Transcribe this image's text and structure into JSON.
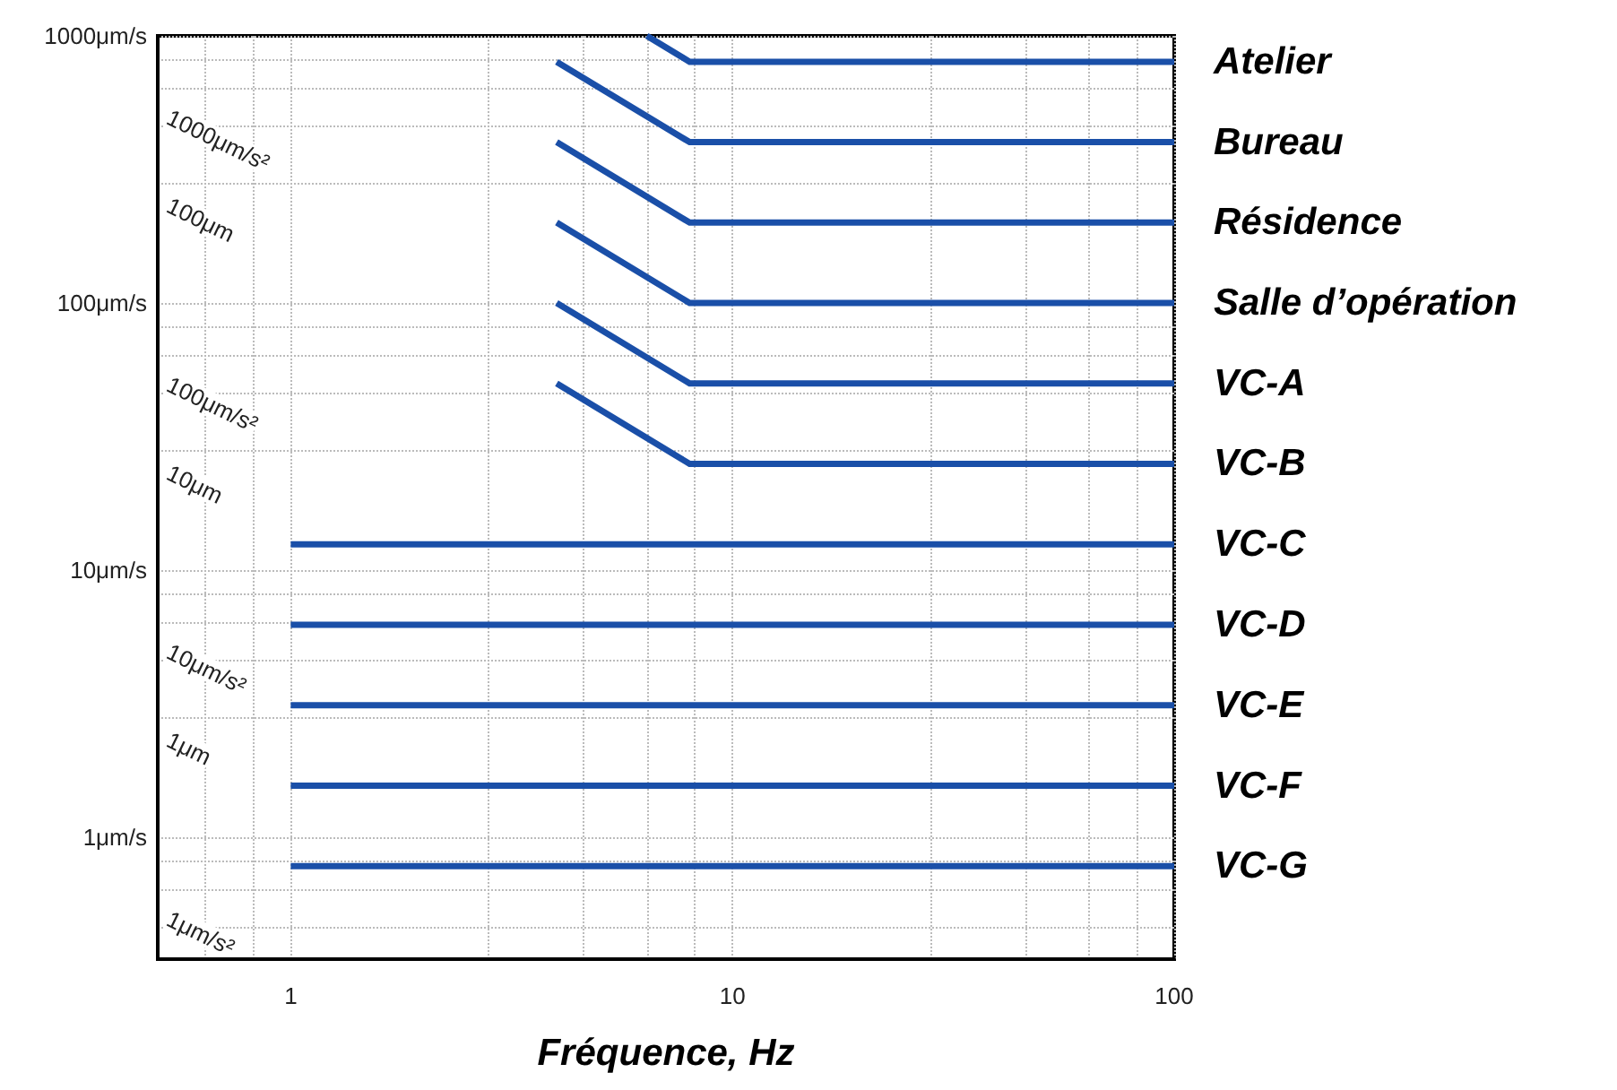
{
  "chart_data": {
    "type": "line",
    "xlabel": "Fréquence, Hz",
    "xlim": [
      0.5,
      100
    ],
    "xticks": [
      1,
      10,
      100
    ],
    "ylim": [
      0.35,
      1000
    ],
    "yticks": [
      {
        "value": 1,
        "label": "1μm/s"
      },
      {
        "value": 10,
        "label": "10μm/s"
      },
      {
        "value": 100,
        "label": "100μm/s"
      },
      {
        "value": 1000,
        "label": "1000μm/s"
      }
    ],
    "annotations": [
      "1000μm/s²",
      "100μm",
      "100μm/s²",
      "10μm",
      "10μm/s²",
      "1μm",
      "1μm/s²"
    ],
    "log": "xy",
    "grid": true,
    "legend": false,
    "marker": "none",
    "line_style": "solid",
    "series": [
      {
        "name": "Atelier",
        "color": "#1a4fa8",
        "x": [
          6.4,
          8,
          100
        ],
        "values": [
          1000,
          800,
          800
        ]
      },
      {
        "name": "Bureau",
        "color": "#1a4fa8",
        "x": [
          4,
          8,
          100
        ],
        "values": [
          800,
          400,
          400
        ]
      },
      {
        "name": "Résidence",
        "color": "#1a4fa8",
        "x": [
          4,
          8,
          100
        ],
        "values": [
          400,
          200,
          200
        ]
      },
      {
        "name": "Salle d’opération",
        "color": "#1a4fa8",
        "x": [
          4,
          8,
          100
        ],
        "values": [
          200,
          100,
          100
        ]
      },
      {
        "name": "VC-A",
        "color": "#1a4fa8",
        "x": [
          4,
          8,
          100
        ],
        "values": [
          100,
          50,
          50
        ]
      },
      {
        "name": "VC-B",
        "color": "#1a4fa8",
        "x": [
          4,
          8,
          100
        ],
        "values": [
          50,
          25,
          25
        ]
      },
      {
        "name": "VC-C",
        "color": "#1a4fa8",
        "x": [
          1,
          100
        ],
        "values": [
          12.5,
          12.5
        ]
      },
      {
        "name": "VC-D",
        "color": "#1a4fa8",
        "x": [
          1,
          100
        ],
        "values": [
          6.25,
          6.25
        ]
      },
      {
        "name": "VC-E",
        "color": "#1a4fa8",
        "x": [
          1,
          100
        ],
        "values": [
          3.12,
          3.12
        ]
      },
      {
        "name": "VC-F",
        "color": "#1a4fa8",
        "x": [
          1,
          100
        ],
        "values": [
          1.56,
          1.56
        ]
      },
      {
        "name": "VC-G",
        "color": "#1a4fa8",
        "x": [
          1,
          100
        ],
        "values": [
          0.78,
          0.78
        ]
      }
    ]
  }
}
